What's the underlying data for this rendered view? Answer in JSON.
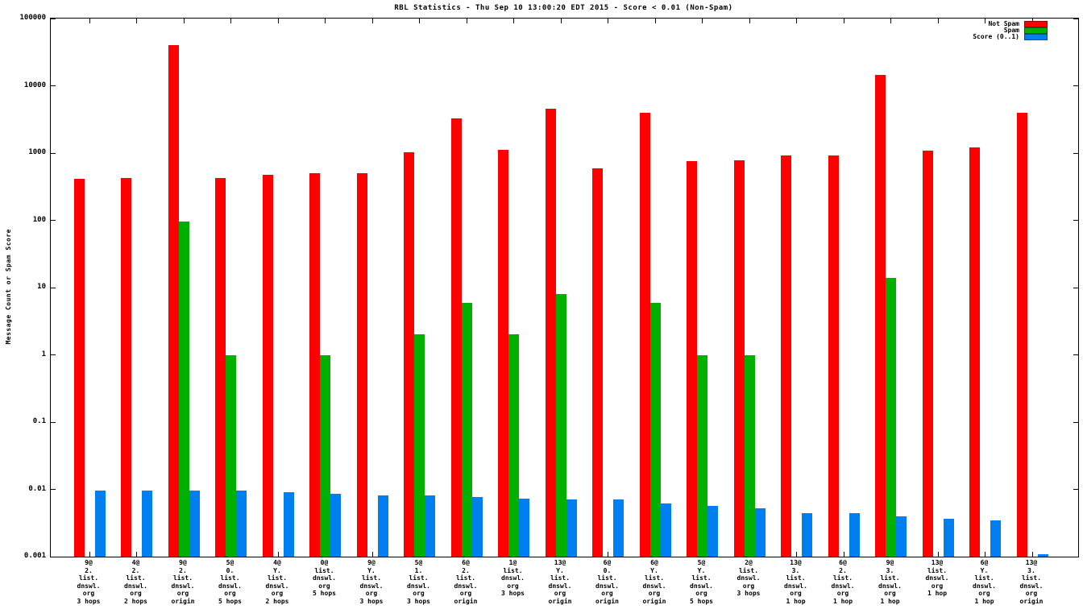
{
  "title": "RBL Statistics - Thu Sep 10 13:00:20 EDT 2015 - Score < 0.01 (Non-Spam)",
  "ylabel": "Message Count or Spam Score",
  "chart_data": {
    "type": "bar",
    "y_scale": "log",
    "ylim": [
      0.001,
      100000
    ],
    "grid": false,
    "legend_position": "top-right",
    "yticks": [
      "100000",
      "10000",
      "1000",
      "100",
      "10",
      "1",
      "0.1",
      "0.01",
      "0.001"
    ],
    "categories": [
      [
        "9@",
        "2.",
        "list.",
        "dnswl.",
        "org",
        "3 hops"
      ],
      [
        "4@",
        "2.",
        "list.",
        "dnswl.",
        "org",
        "2 hops"
      ],
      [
        "9@",
        "2.",
        "list.",
        "dnswl.",
        "org",
        "origin"
      ],
      [
        "5@",
        "0.",
        "list.",
        "dnswl.",
        "org",
        "5 hops"
      ],
      [
        "4@",
        "Y.",
        "list.",
        "dnswl.",
        "org",
        "2 hops"
      ],
      [
        "0@",
        "list.",
        "dnswl.",
        "org",
        "5 hops"
      ],
      [
        "9@",
        "Y.",
        "list.",
        "dnswl.",
        "org",
        "3 hops"
      ],
      [
        "5@",
        "1.",
        "list.",
        "dnswl.",
        "org",
        "3 hops"
      ],
      [
        "6@",
        "2.",
        "list.",
        "dnswl.",
        "org",
        "origin"
      ],
      [
        "1@",
        "list.",
        "dnswl.",
        "org",
        "3 hops"
      ],
      [
        "13@",
        "Y.",
        "list.",
        "dnswl.",
        "org",
        "origin"
      ],
      [
        "6@",
        "0.",
        "list.",
        "dnswl.",
        "org",
        "origin"
      ],
      [
        "6@",
        "Y.",
        "list.",
        "dnswl.",
        "org",
        "origin"
      ],
      [
        "5@",
        "Y.",
        "list.",
        "dnswl.",
        "org",
        "5 hops"
      ],
      [
        "2@",
        "list.",
        "dnswl.",
        "org",
        "3 hops"
      ],
      [
        "13@",
        "3.",
        "list.",
        "dnswl.",
        "org",
        "1 hop"
      ],
      [
        "6@",
        "2.",
        "list.",
        "dnswl.",
        "org",
        "1 hop"
      ],
      [
        "9@",
        "3.",
        "list.",
        "dnswl.",
        "org",
        "1 hop"
      ],
      [
        "13@",
        "list.",
        "dnswl.",
        "org",
        "1 hop"
      ],
      [
        "6@",
        "Y.",
        "list.",
        "dnswl.",
        "org",
        "1 hop"
      ],
      [
        "13@",
        "3.",
        "list.",
        "dnswl.",
        "org",
        "origin"
      ]
    ],
    "series": [
      {
        "name": "Not Spam",
        "color": "#ff0000",
        "values": [
          420,
          430,
          40000,
          430,
          470,
          500,
          500,
          1030,
          3300,
          1130,
          4600,
          600,
          4000,
          760,
          780,
          930,
          930,
          14500,
          1100,
          1200,
          4000
        ]
      },
      {
        "name": "Spam",
        "color": "#00b000",
        "values": [
          null,
          null,
          95,
          1,
          null,
          1,
          null,
          2,
          6,
          2,
          8,
          null,
          6,
          1,
          1,
          null,
          null,
          14,
          null,
          null,
          null
        ]
      },
      {
        "name": "Score (0..1)",
        "color": "#0080f0",
        "values": [
          0.0097,
          0.0097,
          0.0097,
          0.0095,
          0.009,
          0.0085,
          0.0082,
          0.0082,
          0.0078,
          0.0073,
          0.007,
          0.007,
          0.0062,
          0.0057,
          0.0052,
          0.0045,
          0.0045,
          0.004,
          0.0037,
          0.0035,
          0.0011
        ]
      }
    ]
  }
}
